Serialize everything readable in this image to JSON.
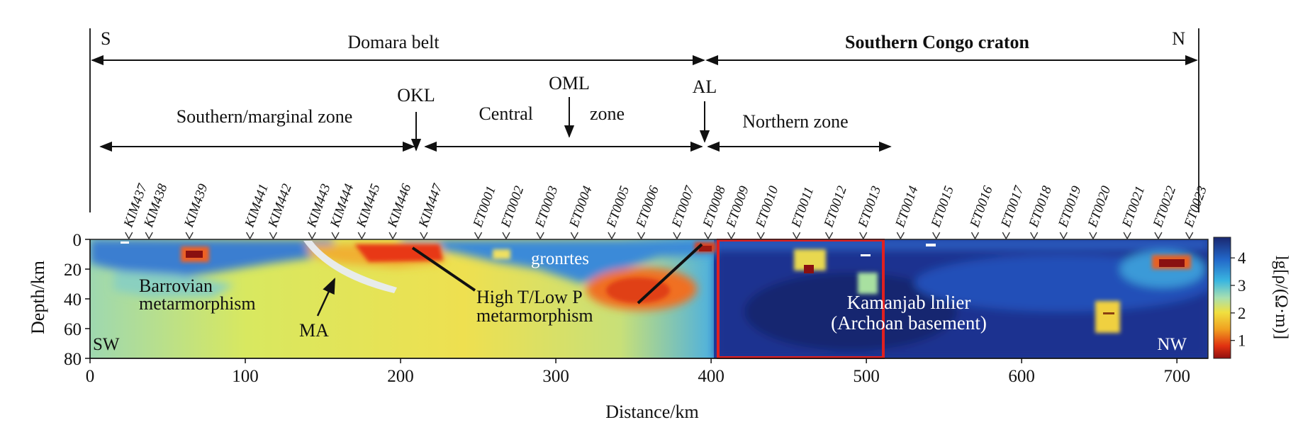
{
  "boundary_labels": {
    "south": "S",
    "north": "N"
  },
  "belts": {
    "domara": "Domara belt",
    "congo": "Southern Congo craton"
  },
  "zones": {
    "southern": "Southern/marginal zone",
    "central": "Central",
    "zone_word": "zone",
    "northern": "Northern zone"
  },
  "lineaments": {
    "okl": "OKL",
    "oml": "OML",
    "al": "AL"
  },
  "stations": [
    {
      "name": "KIM437",
      "km": 25
    },
    {
      "name": "KIM438",
      "km": 38
    },
    {
      "name": "KIM439",
      "km": 64
    },
    {
      "name": "KIM441",
      "km": 103
    },
    {
      "name": "KIM442",
      "km": 118
    },
    {
      "name": "KIM443",
      "km": 143
    },
    {
      "name": "KIM444",
      "km": 158
    },
    {
      "name": "KIM445",
      "km": 175
    },
    {
      "name": "KIM446",
      "km": 195
    },
    {
      "name": "KIM447",
      "km": 215
    },
    {
      "name": "ET0001",
      "km": 250
    },
    {
      "name": "ET0002",
      "km": 268
    },
    {
      "name": "ET0003",
      "km": 290
    },
    {
      "name": "ET0004",
      "km": 312
    },
    {
      "name": "ET0005",
      "km": 336
    },
    {
      "name": "ET0006",
      "km": 355
    },
    {
      "name": "ET0007",
      "km": 378
    },
    {
      "name": "ET0008",
      "km": 398
    },
    {
      "name": "ET0009",
      "km": 413
    },
    {
      "name": "ET0010",
      "km": 432
    },
    {
      "name": "ET0011",
      "km": 455
    },
    {
      "name": "ET0012",
      "km": 476
    },
    {
      "name": "ET0013",
      "km": 498
    },
    {
      "name": "ET0014",
      "km": 522
    },
    {
      "name": "ET0015",
      "km": 545
    },
    {
      "name": "ET0016",
      "km": 570
    },
    {
      "name": "ET0017",
      "km": 590
    },
    {
      "name": "ET0018",
      "km": 608
    },
    {
      "name": "ET0019",
      "km": 627
    },
    {
      "name": "ET0020",
      "km": 646
    },
    {
      "name": "ET0021",
      "km": 668
    },
    {
      "name": "ET0022",
      "km": 688
    },
    {
      "name": "ET0023",
      "km": 708
    }
  ],
  "section": {
    "xlabel": "Distance/km",
    "ylabel": "Depth/km",
    "x_ticks": [
      "0",
      "100",
      "200",
      "300",
      "400",
      "500",
      "600",
      "700"
    ],
    "y_ticks": [
      "0",
      "20",
      "40",
      "60",
      "80"
    ],
    "x_range_km": [
      0,
      720
    ],
    "depth_range_km": [
      0,
      80
    ]
  },
  "annotations": {
    "barrovian_1": "Barrovian",
    "barrovian_2": "metarmorphism",
    "ma": "MA",
    "high_t_1": "High T/Low P",
    "high_t_2": "metarmorphism",
    "gronrtes": "gronrtes",
    "kamanjab_1": "Kamanjab lnlier",
    "kamanjab_2": "(Archoan basement)",
    "sw": "SW",
    "nw": "NW"
  },
  "colorbar": {
    "label": "lg[ρ/(Ω·m)]",
    "ticks": [
      "4",
      "3",
      "2",
      "1"
    ],
    "colors": [
      "#1a2870",
      "#2266c8",
      "#3ab6e0",
      "#a8e0b0",
      "#f0e040",
      "#f0a020",
      "#e03010",
      "#901010"
    ]
  },
  "highlight_color": "#e02020"
}
